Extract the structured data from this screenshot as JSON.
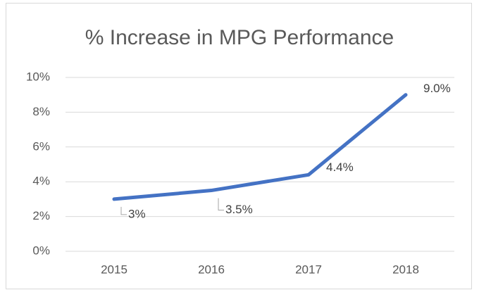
{
  "chart_data": {
    "type": "line",
    "title": "% Increase in MPG Performance",
    "categories": [
      "2015",
      "2016",
      "2017",
      "2018"
    ],
    "series": [
      {
        "name": "% Increase",
        "color": "#4472c4",
        "values": [
          3,
          3.5,
          4.4,
          9.0
        ],
        "value_labels": [
          "3%",
          "3.5%",
          "4.4%",
          "9.0%"
        ]
      }
    ],
    "ylim": [
      0,
      10
    ],
    "yticks": [
      {
        "value": 0,
        "label": "0%"
      },
      {
        "value": 2,
        "label": "2%"
      },
      {
        "value": 4,
        "label": "4%"
      },
      {
        "value": 6,
        "label": "6%"
      },
      {
        "value": 8,
        "label": "8%"
      },
      {
        "value": 10,
        "label": "10%"
      }
    ],
    "grid": true
  }
}
